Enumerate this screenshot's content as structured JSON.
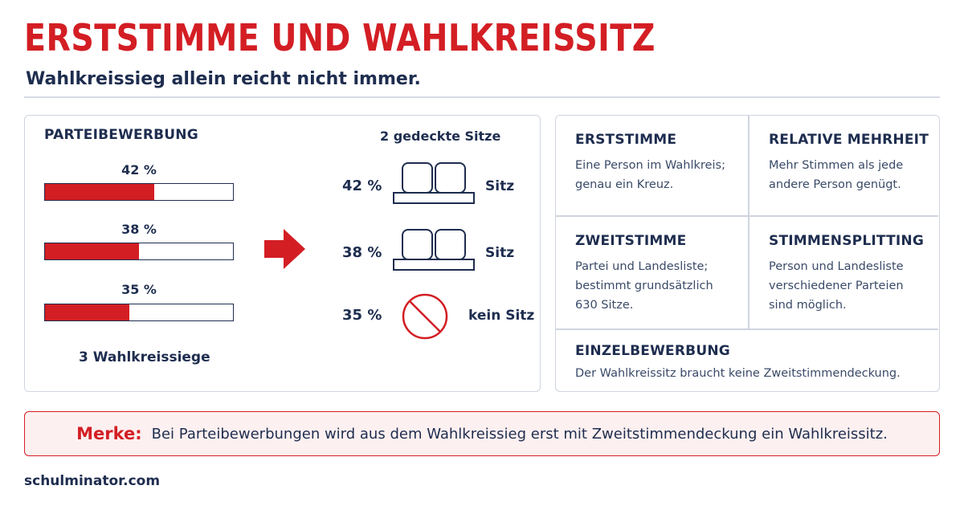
{
  "header": {
    "title": "ERSTSTIMME UND WAHLKREISSITZ",
    "subtitle": "Wahlkreissieg allein reicht nicht immer."
  },
  "left_panel": {
    "label": "PARTEIBEWERBUNG",
    "bars": [
      {
        "label": "42 %",
        "fill": 0.58
      },
      {
        "label": "38 %",
        "fill": 0.5
      },
      {
        "label": "35 %",
        "fill": 0.45
      }
    ],
    "summary": "3 Wahlkreissiege",
    "covered_label": "2 gedeckte Sitze",
    "rows": [
      {
        "pct": "42 %",
        "icon": "seat-icon",
        "result": "Sitz"
      },
      {
        "pct": "38 %",
        "icon": "seat-icon",
        "result": "Sitz"
      },
      {
        "pct": "35 %",
        "icon": "no-entry-icon",
        "result": "kein Sitz"
      }
    ],
    "arrow_icon": "arrow-right-icon"
  },
  "glossary": {
    "erststimme": {
      "title": "ERSTSTIMME",
      "text": "Eine Person im Wahlkreis; genau ein Kreuz."
    },
    "relative_mehrheit": {
      "title": "RELATIVE MEHRHEIT",
      "text": "Mehr Stimmen als jede andere Person genügt."
    },
    "zweitstimme": {
      "title": "ZWEITSTIMME",
      "text": "Partei und Landesliste; bestimmt grundsätzlich 630 Sitze."
    },
    "stimmensplitting": {
      "title": "STIMMENSPLITTING",
      "text": "Person und Landesliste verschiedener Parteien sind möglich."
    },
    "einzelbewerbung": {
      "title": "EINZELBEWERBUNG",
      "text": "Der Wahlkreissitz braucht keine Zweitstimmendeckung."
    }
  },
  "note": {
    "label": "Merke:",
    "text": "Bei Parteibewerbungen wird aus dem Wahlkreissieg erst mit Zweitstimmendeckung ein Wahlkreissitz."
  },
  "footer": {
    "site": "schulminator.com"
  },
  "colors": {
    "accent": "#d31e24",
    "navy": "#1e2d4f",
    "border": "#cfd5df",
    "note_bg": "#fdf0f0"
  }
}
